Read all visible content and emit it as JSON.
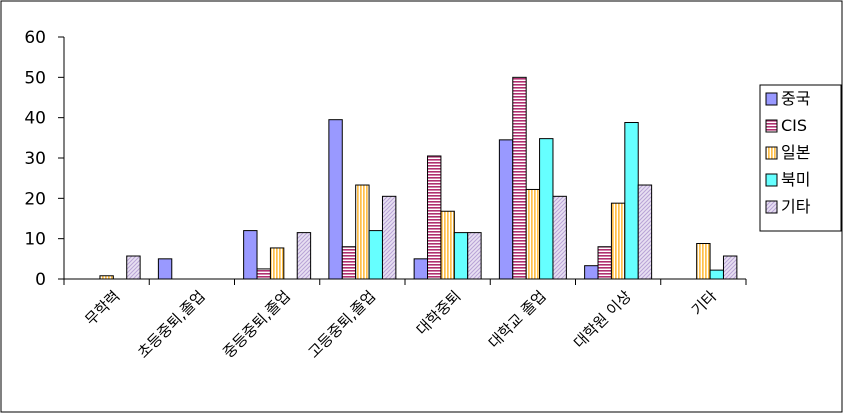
{
  "chart_data": {
    "type": "bar",
    "categories": [
      "무학력",
      "초등중퇴,졸업",
      "중등중퇴,졸업",
      "고등중퇴,졸업",
      "대학중퇴",
      "대학교 졸업",
      "대학원 이상",
      "기타"
    ],
    "series": [
      {
        "name": "중국",
        "color": "#9999ff",
        "pattern": "solid",
        "values": [
          0,
          5,
          12,
          39.5,
          5,
          34.5,
          3.3,
          0
        ]
      },
      {
        "name": "CIS",
        "color": "#993366",
        "pattern": "hstripe",
        "values": [
          0,
          0,
          2.5,
          8,
          30.5,
          50,
          8,
          0
        ]
      },
      {
        "name": "일본",
        "color": "#ffcc66",
        "pattern": "vstripe",
        "values": [
          0.8,
          0,
          7.7,
          23.3,
          16.8,
          22.2,
          18.8,
          8.8
        ]
      },
      {
        "name": "북미",
        "color": "#66ffff",
        "pattern": "solid",
        "values": [
          0,
          0,
          0,
          12,
          11.5,
          34.8,
          38.8,
          2.2
        ]
      },
      {
        "name": "기타",
        "color": "#ccb8e0",
        "pattern": "diag",
        "values": [
          5.7,
          0,
          11.5,
          20.5,
          11.5,
          20.5,
          23.3,
          5.7
        ]
      }
    ],
    "y_ticks": [
      "0",
      "10",
      "20",
      "30",
      "40",
      "50",
      "60"
    ],
    "ylim": [
      0,
      60
    ],
    "grid": false,
    "legend": "right",
    "title": "",
    "xlabel": "",
    "ylabel": ""
  }
}
